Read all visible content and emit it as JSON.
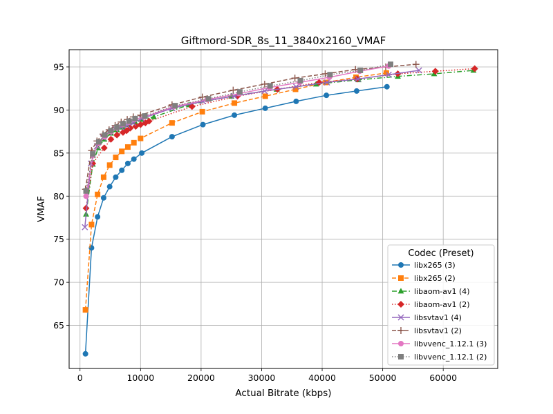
{
  "chart_data": {
    "type": "line",
    "title": "Giftmord-SDR_8s_11_3840x2160_VMAF",
    "xlabel": "Actual Bitrate (kbps)",
    "ylabel": "VMAF",
    "xlim": [
      -1800,
      69000
    ],
    "ylim": [
      60,
      97
    ],
    "xticks": [
      0,
      10000,
      20000,
      30000,
      40000,
      50000,
      60000
    ],
    "yticks": [
      65,
      70,
      75,
      80,
      85,
      90,
      95
    ],
    "grid": true,
    "legend": {
      "title": "Codec (Preset)",
      "placement": "lower-right"
    },
    "series": [
      {
        "name": "libx265 (3)",
        "color": "#1f77b4",
        "marker": "circle",
        "dash": "solid",
        "x": [
          900,
          1900,
          2900,
          3900,
          4900,
          5900,
          6900,
          7900,
          8900,
          10200,
          15200,
          20300,
          25500,
          30600,
          35700,
          40700,
          45700,
          50700
        ],
        "y": [
          61.7,
          74.0,
          77.6,
          79.8,
          81.1,
          82.2,
          83.0,
          83.8,
          84.3,
          85.0,
          86.9,
          88.3,
          89.4,
          90.2,
          91.0,
          91.7,
          92.2,
          92.7
        ]
      },
      {
        "name": "libx265 (2)",
        "color": "#ff7f0e",
        "marker": "square",
        "dash": "dashed",
        "x": [
          900,
          1900,
          2900,
          3900,
          4900,
          5900,
          6900,
          7900,
          8900,
          10000,
          15200,
          20200,
          25500,
          30600,
          35600,
          40600,
          45600,
          50600
        ],
        "y": [
          66.8,
          76.7,
          80.2,
          82.2,
          83.6,
          84.5,
          85.2,
          85.7,
          86.2,
          86.7,
          88.5,
          89.8,
          90.8,
          91.6,
          92.4,
          93.2,
          93.8,
          94.3
        ]
      },
      {
        "name": "libaom-av1 (4)",
        "color": "#2ca02c",
        "marker": "triangle",
        "dash": "dashdot",
        "x": [
          1000,
          2100,
          3000,
          4000,
          5100,
          6100,
          7100,
          8100,
          9100,
          10100,
          12200,
          18000,
          25000,
          32500,
          39000,
          46000,
          52500,
          58500,
          65000
        ],
        "y": [
          77.9,
          83.7,
          85.6,
          86.6,
          87.3,
          87.7,
          88.0,
          88.3,
          88.6,
          88.9,
          89.2,
          90.6,
          91.6,
          92.4,
          93.0,
          93.5,
          93.9,
          94.2,
          94.6
        ]
      },
      {
        "name": "libaom-av1 (2)",
        "color": "#d62728",
        "marker": "diamond",
        "dash": "dotted",
        "x": [
          1000,
          2100,
          4000,
          5100,
          6100,
          7100,
          7700,
          8300,
          9200,
          10000,
          10800,
          11400,
          18500,
          26000,
          32600,
          39500,
          45800,
          52500,
          58700,
          65200
        ],
        "y": [
          78.6,
          83.8,
          85.6,
          86.6,
          87.1,
          87.4,
          87.6,
          87.9,
          88.1,
          88.3,
          88.5,
          88.7,
          90.4,
          91.6,
          92.4,
          93.2,
          93.6,
          94.2,
          94.5,
          94.8
        ]
      },
      {
        "name": "libsvtav1 (4)",
        "color": "#9467bd",
        "marker": "x",
        "dash": "solid",
        "x": [
          800,
          1800,
          2800,
          3800,
          4800,
          5800,
          6800,
          7800,
          8800,
          10200,
          15200,
          20300,
          25500,
          30500,
          35700,
          40800,
          45900,
          51000,
          56000
        ],
        "y": [
          76.4,
          83.8,
          85.8,
          86.8,
          87.4,
          87.8,
          88.0,
          88.2,
          88.5,
          89.0,
          90.2,
          91.0,
          91.6,
          92.2,
          92.7,
          93.2,
          93.6,
          94.1,
          94.6
        ]
      },
      {
        "name": "libsvtav1 (2)",
        "color": "#8c564b",
        "marker": "plus",
        "dash": "dashed",
        "x": [
          900,
          1900,
          2800,
          3800,
          4800,
          5800,
          6800,
          7800,
          8800,
          10000,
          15200,
          20200,
          25300,
          30500,
          35500,
          40500,
          45500,
          50500,
          55500
        ],
        "y": [
          80.8,
          85.3,
          86.4,
          87.2,
          87.7,
          88.2,
          88.6,
          88.9,
          89.2,
          89.4,
          90.6,
          91.5,
          92.3,
          93.0,
          93.7,
          94.2,
          94.7,
          95.0,
          95.3
        ]
      },
      {
        "name": "libvvenc_1.12.1 (3)",
        "color": "#e377c2",
        "marker": "circle",
        "dash": "solid",
        "x": [
          1000,
          2100,
          3100,
          4100,
          5100,
          6100,
          7100,
          8100,
          9100,
          10600,
          15600,
          21000,
          26300,
          31300,
          36300,
          41200,
          46200,
          51000
        ],
        "y": [
          80.0,
          84.7,
          86.1,
          86.9,
          87.5,
          87.9,
          88.3,
          88.6,
          88.9,
          89.2,
          90.4,
          91.2,
          91.9,
          92.6,
          93.2,
          93.8,
          94.5,
          95.1
        ]
      },
      {
        "name": "libvvenc_1.12.1 (2)",
        "color": "#7f7f7f",
        "marker": "square",
        "dash": "dotted",
        "x": [
          1000,
          2100,
          3100,
          4100,
          5100,
          6100,
          7100,
          8100,
          9100,
          10700,
          15700,
          21200,
          26400,
          31400,
          36400,
          41300,
          46300,
          51300
        ],
        "y": [
          80.6,
          84.9,
          86.3,
          87.1,
          87.6,
          88.0,
          88.4,
          88.7,
          89.0,
          89.3,
          90.5,
          91.3,
          92.1,
          92.8,
          93.4,
          94.1,
          94.6,
          95.3
        ]
      }
    ]
  }
}
